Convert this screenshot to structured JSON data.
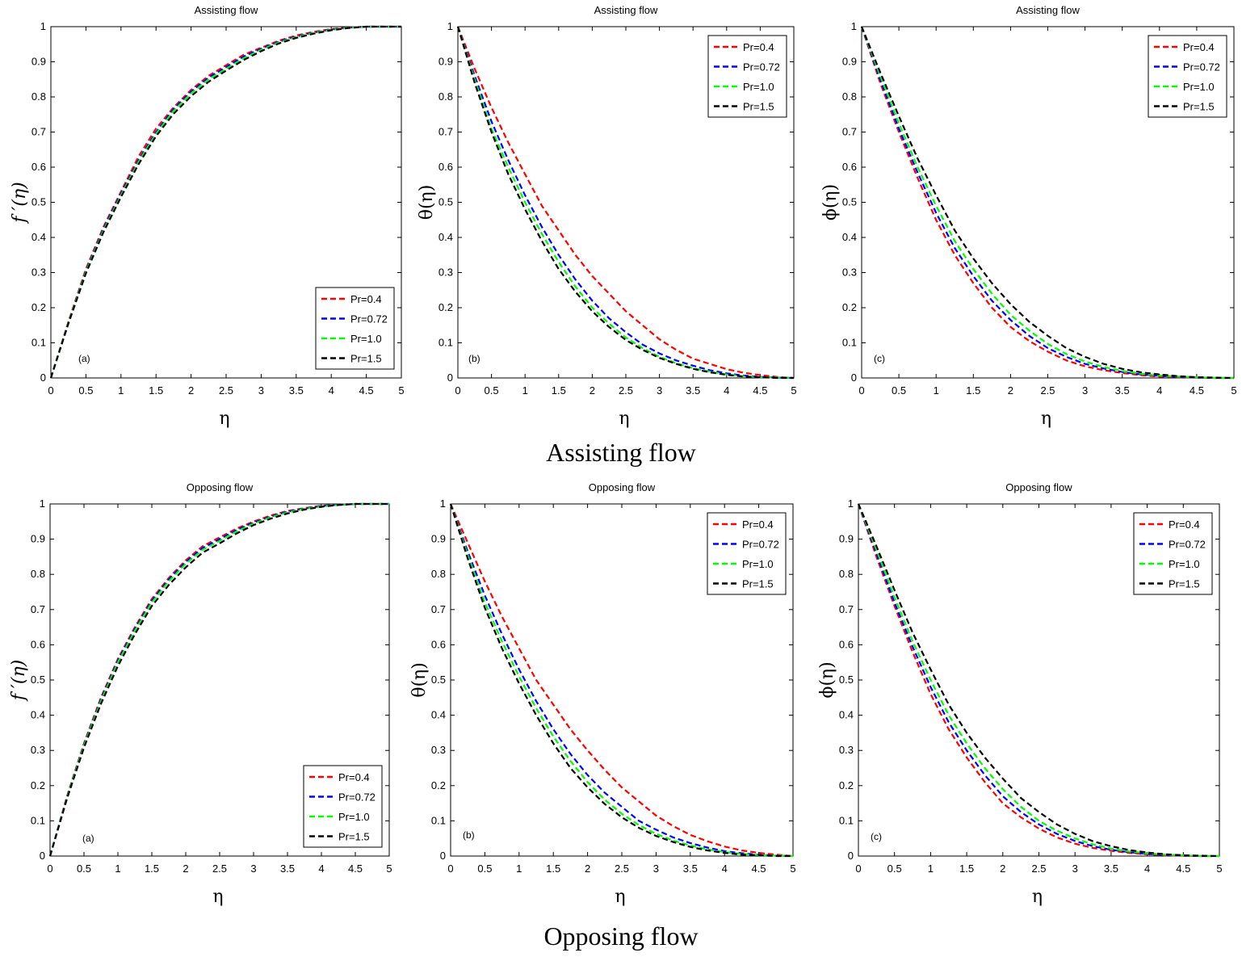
{
  "row_captions": [
    "Assisting flow",
    "Opposing flow"
  ],
  "colors": {
    "Pr=0.4": "#ff0000",
    "Pr=0.72": "#0000ff",
    "Pr=1.0": "#00ff00",
    "Pr=1.5": "#000000"
  },
  "chart_data": [
    {
      "type": "line",
      "title": "Assisting flow",
      "tag": "(a)",
      "xlabel": "η",
      "ylabel": "f ′(η)",
      "xlim": [
        0,
        5
      ],
      "ylim": [
        0,
        1
      ],
      "legend": "bottom-right",
      "xticks": [
        "0",
        "0.5",
        "1",
        "1.5",
        "2",
        "2.5",
        "3",
        "3.5",
        "4",
        "4.5",
        "5"
      ],
      "yticks": [
        "0",
        "0.1",
        "0.2",
        "0.3",
        "0.4",
        "0.5",
        "0.6",
        "0.7",
        "0.8",
        "0.9",
        "1"
      ],
      "x": [
        0,
        0.25,
        0.5,
        0.75,
        1,
        1.25,
        1.5,
        1.75,
        2,
        2.25,
        2.5,
        2.75,
        3,
        3.25,
        3.5,
        3.75,
        4,
        4.25,
        4.5,
        4.75,
        5
      ],
      "series": [
        {
          "name": "Pr=0.4",
          "values": [
            0,
            0.16,
            0.31,
            0.43,
            0.53,
            0.63,
            0.71,
            0.77,
            0.82,
            0.86,
            0.89,
            0.92,
            0.94,
            0.96,
            0.975,
            0.985,
            0.993,
            0.998,
            1,
            1,
            1
          ]
        },
        {
          "name": "Pr=0.72",
          "values": [
            0,
            0.158,
            0.305,
            0.425,
            0.525,
            0.62,
            0.7,
            0.765,
            0.815,
            0.855,
            0.885,
            0.915,
            0.937,
            0.957,
            0.972,
            0.983,
            0.992,
            0.997,
            1,
            1,
            1
          ]
        },
        {
          "name": "Pr=1.0",
          "values": [
            0,
            0.157,
            0.302,
            0.42,
            0.52,
            0.615,
            0.695,
            0.76,
            0.81,
            0.85,
            0.88,
            0.91,
            0.934,
            0.955,
            0.97,
            0.982,
            0.991,
            0.997,
            1,
            1,
            1
          ]
        },
        {
          "name": "Pr=1.5",
          "values": [
            0,
            0.155,
            0.298,
            0.415,
            0.515,
            0.608,
            0.688,
            0.752,
            0.802,
            0.843,
            0.875,
            0.905,
            0.93,
            0.952,
            0.968,
            0.98,
            0.99,
            0.996,
            1,
            1,
            1
          ]
        }
      ]
    },
    {
      "type": "line",
      "title": "Assisting flow",
      "tag": "(b)",
      "xlabel": "η",
      "ylabel": "θ(η)",
      "xlim": [
        0,
        5
      ],
      "ylim": [
        0,
        1
      ],
      "legend": "top-right",
      "xticks": [
        "0",
        "0.5",
        "1",
        "1.5",
        "2",
        "2.5",
        "3",
        "3.5",
        "4",
        "4.5",
        "5"
      ],
      "yticks": [
        "0",
        "0.1",
        "0.2",
        "0.3",
        "0.4",
        "0.5",
        "0.6",
        "0.7",
        "0.8",
        "0.9",
        "1"
      ],
      "x": [
        0,
        0.25,
        0.5,
        0.75,
        1,
        1.25,
        1.5,
        1.75,
        2,
        2.25,
        2.5,
        2.75,
        3,
        3.25,
        3.5,
        3.75,
        4,
        4.25,
        4.5,
        4.75,
        5
      ],
      "series": [
        {
          "name": "Pr=0.4",
          "values": [
            1,
            0.88,
            0.77,
            0.67,
            0.58,
            0.49,
            0.42,
            0.35,
            0.29,
            0.24,
            0.19,
            0.15,
            0.11,
            0.08,
            0.055,
            0.04,
            0.025,
            0.015,
            0.008,
            0.003,
            0
          ]
        },
        {
          "name": "Pr=0.72",
          "values": [
            1,
            0.86,
            0.73,
            0.62,
            0.52,
            0.43,
            0.35,
            0.28,
            0.22,
            0.17,
            0.13,
            0.095,
            0.07,
            0.05,
            0.035,
            0.022,
            0.013,
            0.007,
            0.003,
            0.001,
            0
          ]
        },
        {
          "name": "Pr=1.0",
          "values": [
            1,
            0.85,
            0.71,
            0.6,
            0.5,
            0.41,
            0.33,
            0.26,
            0.2,
            0.155,
            0.115,
            0.085,
            0.06,
            0.042,
            0.028,
            0.018,
            0.01,
            0.005,
            0.002,
            0.001,
            0
          ]
        },
        {
          "name": "Pr=1.5",
          "values": [
            1,
            0.84,
            0.7,
            0.58,
            0.48,
            0.39,
            0.31,
            0.245,
            0.19,
            0.145,
            0.108,
            0.08,
            0.057,
            0.04,
            0.026,
            0.016,
            0.009,
            0.004,
            0.002,
            0,
            0
          ]
        }
      ]
    },
    {
      "type": "line",
      "title": "Assisting flow",
      "tag": "(c)",
      "xlabel": "η",
      "ylabel": "ϕ(η)",
      "xlim": [
        0,
        5
      ],
      "ylim": [
        0,
        1
      ],
      "legend": "top-right",
      "xticks": [
        "0",
        "0.5",
        "1",
        "1.5",
        "2",
        "2.5",
        "3",
        "3.5",
        "4",
        "4.5",
        "5"
      ],
      "yticks": [
        "0",
        "0.1",
        "0.2",
        "0.3",
        "0.4",
        "0.5",
        "0.6",
        "0.7",
        "0.8",
        "0.9",
        "1"
      ],
      "x": [
        0,
        0.25,
        0.5,
        0.75,
        1,
        1.25,
        1.5,
        1.75,
        2,
        2.25,
        2.5,
        2.75,
        3,
        3.25,
        3.5,
        3.75,
        4,
        4.25,
        4.5,
        4.75,
        5
      ],
      "series": [
        {
          "name": "Pr=0.4",
          "values": [
            1,
            0.84,
            0.7,
            0.57,
            0.45,
            0.35,
            0.27,
            0.2,
            0.145,
            0.105,
            0.075,
            0.05,
            0.033,
            0.022,
            0.014,
            0.008,
            0.004,
            0.002,
            0.001,
            0,
            0
          ]
        },
        {
          "name": "Pr=0.72",
          "values": [
            1,
            0.85,
            0.71,
            0.585,
            0.47,
            0.37,
            0.29,
            0.22,
            0.165,
            0.12,
            0.085,
            0.06,
            0.04,
            0.027,
            0.017,
            0.01,
            0.006,
            0.003,
            0.001,
            0,
            0
          ]
        },
        {
          "name": "Pr=1.0",
          "values": [
            1,
            0.86,
            0.725,
            0.6,
            0.49,
            0.39,
            0.31,
            0.24,
            0.18,
            0.135,
            0.097,
            0.068,
            0.047,
            0.031,
            0.02,
            0.012,
            0.007,
            0.004,
            0.002,
            0,
            0
          ]
        },
        {
          "name": "Pr=1.5",
          "values": [
            1,
            0.87,
            0.745,
            0.625,
            0.52,
            0.42,
            0.34,
            0.27,
            0.21,
            0.16,
            0.12,
            0.085,
            0.06,
            0.04,
            0.026,
            0.016,
            0.01,
            0.005,
            0.002,
            0.001,
            0
          ]
        }
      ]
    },
    {
      "type": "line",
      "title": "Opposing flow",
      "tag": "(a)",
      "xlabel": "η",
      "ylabel": "f ′(η)",
      "xlim": [
        0,
        5
      ],
      "ylim": [
        0,
        1
      ],
      "legend": "bottom-right",
      "xticks": [
        "0",
        "0.5",
        "1",
        "1.5",
        "2",
        "2.5",
        "3",
        "3.5",
        "4",
        "4.5",
        "5"
      ],
      "yticks": [
        "0",
        "0.1",
        "0.2",
        "0.3",
        "0.4",
        "0.5",
        "0.6",
        "0.7",
        "0.8",
        "0.9",
        "1"
      ],
      "x": [
        0,
        0.25,
        0.5,
        0.75,
        1,
        1.25,
        1.5,
        1.75,
        2,
        2.25,
        2.5,
        2.75,
        3,
        3.25,
        3.5,
        3.75,
        4,
        4.25,
        4.5,
        4.75,
        5
      ],
      "series": [
        {
          "name": "Pr=0.4",
          "values": [
            0,
            0.17,
            0.32,
            0.45,
            0.56,
            0.65,
            0.73,
            0.79,
            0.84,
            0.88,
            0.905,
            0.93,
            0.95,
            0.967,
            0.98,
            0.988,
            0.995,
            0.998,
            1,
            1,
            1
          ]
        },
        {
          "name": "Pr=0.72",
          "values": [
            0,
            0.168,
            0.317,
            0.445,
            0.555,
            0.645,
            0.725,
            0.785,
            0.835,
            0.875,
            0.9,
            0.926,
            0.947,
            0.964,
            0.978,
            0.987,
            0.994,
            0.998,
            1,
            1,
            1
          ]
        },
        {
          "name": "Pr=1.0",
          "values": [
            0,
            0.166,
            0.314,
            0.44,
            0.55,
            0.64,
            0.72,
            0.78,
            0.83,
            0.87,
            0.895,
            0.922,
            0.944,
            0.962,
            0.976,
            0.986,
            0.993,
            0.997,
            1,
            1,
            1
          ]
        },
        {
          "name": "Pr=1.5",
          "values": [
            0,
            0.163,
            0.308,
            0.432,
            0.54,
            0.63,
            0.71,
            0.77,
            0.82,
            0.862,
            0.888,
            0.916,
            0.94,
            0.958,
            0.973,
            0.984,
            0.992,
            0.997,
            1,
            1,
            1
          ]
        }
      ]
    },
    {
      "type": "line",
      "title": "Opposing flow",
      "tag": "(b)",
      "xlabel": "η",
      "ylabel": "θ(η)",
      "xlim": [
        0,
        5
      ],
      "ylim": [
        0,
        1
      ],
      "legend": "top-right",
      "xticks": [
        "0",
        "0.5",
        "1",
        "1.5",
        "2",
        "2.5",
        "3",
        "3.5",
        "4",
        "4.5",
        "5"
      ],
      "yticks": [
        "0",
        "0.1",
        "0.2",
        "0.3",
        "0.4",
        "0.5",
        "0.6",
        "0.7",
        "0.8",
        "0.9",
        "1"
      ],
      "x": [
        0,
        0.25,
        0.5,
        0.75,
        1,
        1.25,
        1.5,
        1.75,
        2,
        2.25,
        2.5,
        2.75,
        3,
        3.25,
        3.5,
        3.75,
        4,
        4.25,
        4.5,
        4.75,
        5
      ],
      "series": [
        {
          "name": "Pr=0.4",
          "values": [
            1,
            0.89,
            0.78,
            0.68,
            0.59,
            0.5,
            0.43,
            0.36,
            0.3,
            0.245,
            0.195,
            0.155,
            0.115,
            0.085,
            0.06,
            0.042,
            0.027,
            0.016,
            0.009,
            0.004,
            0
          ]
        },
        {
          "name": "Pr=0.72",
          "values": [
            1,
            0.865,
            0.74,
            0.63,
            0.53,
            0.44,
            0.36,
            0.29,
            0.23,
            0.18,
            0.14,
            0.1,
            0.075,
            0.053,
            0.037,
            0.024,
            0.014,
            0.008,
            0.004,
            0.001,
            0
          ]
        },
        {
          "name": "Pr=1.0",
          "values": [
            1,
            0.855,
            0.72,
            0.61,
            0.51,
            0.42,
            0.34,
            0.27,
            0.21,
            0.16,
            0.12,
            0.088,
            0.063,
            0.044,
            0.03,
            0.019,
            0.011,
            0.006,
            0.003,
            0.001,
            0
          ]
        },
        {
          "name": "Pr=1.5",
          "values": [
            1,
            0.845,
            0.705,
            0.59,
            0.49,
            0.4,
            0.32,
            0.25,
            0.195,
            0.148,
            0.11,
            0.08,
            0.057,
            0.04,
            0.026,
            0.016,
            0.009,
            0.004,
            0.002,
            0,
            0
          ]
        }
      ]
    },
    {
      "type": "line",
      "title": "Opposing flow",
      "tag": "(c)",
      "xlabel": "η",
      "ylabel": "ϕ(η)",
      "xlim": [
        0,
        5
      ],
      "ylim": [
        0,
        1
      ],
      "legend": "top-right",
      "xticks": [
        "0",
        "0.5",
        "1",
        "1.5",
        "2",
        "2.5",
        "3",
        "3.5",
        "4",
        "4.5",
        "5"
      ],
      "yticks": [
        "0",
        "0.1",
        "0.2",
        "0.3",
        "0.4",
        "0.5",
        "0.6",
        "0.7",
        "0.8",
        "0.9",
        "1"
      ],
      "x": [
        0,
        0.25,
        0.5,
        0.75,
        1,
        1.25,
        1.5,
        1.75,
        2,
        2.25,
        2.5,
        2.75,
        3,
        3.25,
        3.5,
        3.75,
        4,
        4.25,
        4.5,
        4.75,
        5
      ],
      "series": [
        {
          "name": "Pr=0.4",
          "values": [
            1,
            0.85,
            0.71,
            0.58,
            0.46,
            0.36,
            0.28,
            0.21,
            0.15,
            0.11,
            0.078,
            0.053,
            0.035,
            0.023,
            0.015,
            0.009,
            0.005,
            0.002,
            0.001,
            0,
            0
          ]
        },
        {
          "name": "Pr=0.72",
          "values": [
            1,
            0.86,
            0.72,
            0.595,
            0.48,
            0.38,
            0.3,
            0.23,
            0.17,
            0.125,
            0.09,
            0.063,
            0.043,
            0.028,
            0.018,
            0.011,
            0.006,
            0.003,
            0.001,
            0,
            0
          ]
        },
        {
          "name": "Pr=1.0",
          "values": [
            1,
            0.87,
            0.735,
            0.61,
            0.5,
            0.4,
            0.32,
            0.25,
            0.19,
            0.14,
            0.1,
            0.072,
            0.05,
            0.033,
            0.021,
            0.013,
            0.008,
            0.004,
            0.002,
            0,
            0
          ]
        },
        {
          "name": "Pr=1.5",
          "values": [
            1,
            0.88,
            0.755,
            0.635,
            0.53,
            0.43,
            0.35,
            0.28,
            0.22,
            0.165,
            0.125,
            0.09,
            0.063,
            0.042,
            0.028,
            0.017,
            0.01,
            0.005,
            0.002,
            0.001,
            0
          ]
        }
      ]
    }
  ]
}
